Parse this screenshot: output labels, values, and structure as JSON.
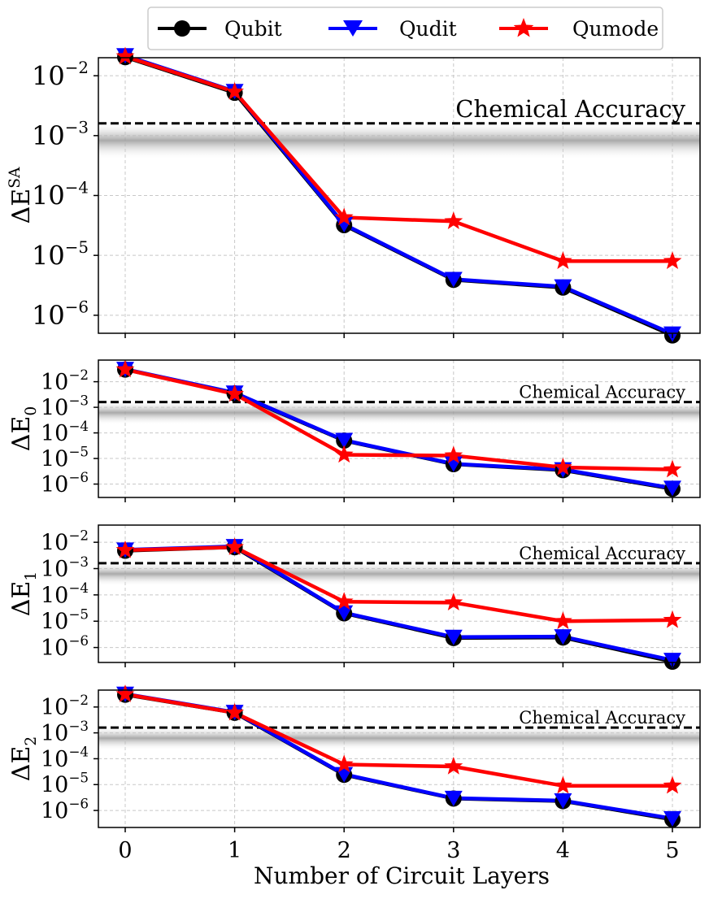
{
  "chart_data": [
    {
      "type": "line",
      "scale": "log",
      "ylabel_base": "ΔE",
      "ylabel_sup": "SA",
      "ylabel_sub": "",
      "x": [
        0,
        1,
        2,
        3,
        4,
        5
      ],
      "ylim": [
        5e-07,
        0.02
      ],
      "yticks": [
        -6,
        -5,
        -4,
        -3,
        -2
      ],
      "reference_line": {
        "value": 0.0016,
        "label": "Chemical Accuracy"
      },
      "series": [
        {
          "name": "Qubit",
          "values": [
            0.0205,
            0.0052,
            3.2e-05,
            3.9e-06,
            2.9e-06,
            4.6e-07
          ]
        },
        {
          "name": "Qudit",
          "values": [
            0.0218,
            0.0055,
            3.3e-05,
            4e-06,
            3e-06,
            4.9e-07
          ]
        },
        {
          "name": "Qumode",
          "values": [
            0.021,
            0.0054,
            4.3e-05,
            3.7e-05,
            8e-06,
            8e-06
          ]
        }
      ]
    },
    {
      "type": "line",
      "scale": "log",
      "ylabel_base": "ΔE",
      "ylabel_sup": "",
      "ylabel_sub": "0",
      "x": [
        0,
        1,
        2,
        3,
        4,
        5
      ],
      "ylim": [
        3e-07,
        0.07
      ],
      "yticks": [
        -6,
        -5,
        -4,
        -3,
        -2
      ],
      "reference_line": {
        "value": 0.0016,
        "label": "Chemical Accuracy"
      },
      "series": [
        {
          "name": "Qubit",
          "values": [
            0.03,
            0.0035,
            5e-05,
            6e-06,
            3.5e-06,
            6.5e-07
          ]
        },
        {
          "name": "Qudit",
          "values": [
            0.031,
            0.0037,
            5.2e-05,
            6.2e-06,
            3.7e-06,
            7e-07
          ]
        },
        {
          "name": "Qumode",
          "values": [
            0.03,
            0.0033,
            1.4e-05,
            1.3e-05,
            4.5e-06,
            3.7e-06
          ]
        }
      ]
    },
    {
      "type": "line",
      "scale": "log",
      "ylabel_base": "ΔE",
      "ylabel_sup": "",
      "ylabel_sub": "1",
      "x": [
        0,
        1,
        2,
        3,
        4,
        5
      ],
      "ylim": [
        2.7e-07,
        0.045
      ],
      "yticks": [
        -6,
        -5,
        -4,
        -3,
        -2
      ],
      "reference_line": {
        "value": 0.0016,
        "label": "Chemical Accuracy"
      },
      "series": [
        {
          "name": "Qubit",
          "values": [
            0.0048,
            0.0065,
            2e-05,
            2.3e-06,
            2.4e-06,
            2.9e-07
          ]
        },
        {
          "name": "Qudit",
          "values": [
            0.0052,
            0.007,
            2.1e-05,
            2.5e-06,
            2.6e-06,
            3.3e-07
          ]
        },
        {
          "name": "Qumode",
          "values": [
            0.005,
            0.0065,
            5.5e-05,
            5.1e-05,
            1e-05,
            1.1e-05
          ]
        }
      ]
    },
    {
      "type": "line",
      "scale": "log",
      "ylabel_base": "ΔE",
      "ylabel_sup": "",
      "ylabel_sub": "2",
      "x": [
        0,
        1,
        2,
        3,
        4,
        5
      ],
      "ylim": [
        2.2e-07,
        0.045
      ],
      "yticks": [
        -6,
        -5,
        -4,
        -3,
        -2
      ],
      "reference_line": {
        "value": 0.0016,
        "label": "Chemical Accuracy"
      },
      "series": [
        {
          "name": "Qubit",
          "values": [
            0.03,
            0.006,
            2.4e-05,
            2.9e-06,
            2.3e-06,
            4.5e-07
          ]
        },
        {
          "name": "Qudit",
          "values": [
            0.032,
            0.0063,
            2.5e-05,
            3e-06,
            2.4e-06,
            4.9e-07
          ]
        },
        {
          "name": "Qumode",
          "values": [
            0.031,
            0.006,
            6e-05,
            5e-05,
            9e-06,
            9e-06
          ]
        }
      ]
    }
  ],
  "legend": [
    {
      "name": "Qubit",
      "color": "#000000",
      "marker": "circle"
    },
    {
      "name": "Qudit",
      "color": "#0000ff",
      "marker": "triangle-down"
    },
    {
      "name": "Qumode",
      "color": "#ff0000",
      "marker": "star"
    }
  ],
  "xlabel": "Number of Circuit Layers",
  "xticks": [
    "0",
    "1",
    "2",
    "3",
    "4",
    "5"
  ],
  "ytick_base": "10"
}
